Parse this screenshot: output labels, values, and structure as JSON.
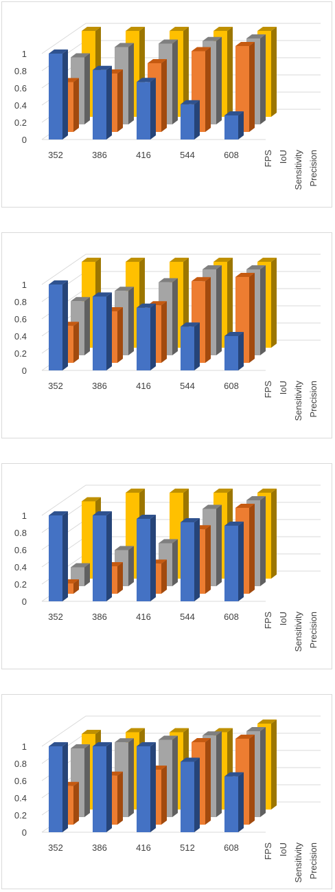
{
  "palette": {
    "FPS": [
      "#4472c4",
      "#2f528f",
      "#264478"
    ],
    "IoU": [
      "#ed7d31",
      "#c55a11",
      "#a24a0e"
    ],
    "Sensitivity": [
      "#a5a5a5",
      "#7f7f7f",
      "#606060"
    ],
    "Precision": [
      "#ffc000",
      "#bf9000",
      "#9c7600"
    ],
    "grid": "#d9d9d9",
    "text": "#404040"
  },
  "chart_data": [
    {
      "type": "bar",
      "projection": "3d-column",
      "categories": [
        "352",
        "386",
        "416",
        "544",
        "608"
      ],
      "y_ticks": [
        "0",
        "0.2",
        "0.4",
        "0.6",
        "0.8",
        "1"
      ],
      "ylim": [
        0,
        1
      ],
      "series": [
        {
          "name": "FPS",
          "values": [
            1.0,
            0.81,
            0.67,
            0.41,
            0.28
          ]
        },
        {
          "name": "IoU",
          "values": [
            0.58,
            0.68,
            0.8,
            0.94,
            1.0
          ]
        },
        {
          "name": "Sensitivity",
          "values": [
            0.78,
            0.9,
            0.94,
            0.97,
            1.0
          ]
        },
        {
          "name": "Precision",
          "values": [
            1.0,
            1.0,
            1.0,
            1.0,
            1.0
          ]
        }
      ]
    },
    {
      "type": "bar",
      "projection": "3d-column",
      "categories": [
        "352",
        "386",
        "416",
        "544",
        "608"
      ],
      "y_ticks": [
        "0",
        "0.2",
        "0.4",
        "0.6",
        "0.8",
        "1"
      ],
      "ylim": [
        0,
        1
      ],
      "series": [
        {
          "name": "FPS",
          "values": [
            1.0,
            0.86,
            0.73,
            0.51,
            0.4
          ]
        },
        {
          "name": "IoU",
          "values": [
            0.43,
            0.6,
            0.67,
            0.95,
            1.0
          ]
        },
        {
          "name": "Sensitivity",
          "values": [
            0.63,
            0.75,
            0.85,
            1.0,
            1.0
          ]
        },
        {
          "name": "Precision",
          "values": [
            1.0,
            1.0,
            1.0,
            1.0,
            1.0
          ]
        }
      ]
    },
    {
      "type": "bar",
      "projection": "3d-column",
      "categories": [
        "352",
        "386",
        "416",
        "544",
        "608"
      ],
      "y_ticks": [
        "0",
        "0.2",
        "0.4",
        "0.6",
        "0.8",
        "1"
      ],
      "ylim": [
        0,
        1
      ],
      "series": [
        {
          "name": "FPS",
          "values": [
            1.0,
            1.0,
            0.96,
            0.92,
            0.88
          ]
        },
        {
          "name": "IoU",
          "values": [
            0.12,
            0.32,
            0.35,
            0.75,
            1.0
          ]
        },
        {
          "name": "Sensitivity",
          "values": [
            0.22,
            0.42,
            0.5,
            0.9,
            1.0
          ]
        },
        {
          "name": "Precision",
          "values": [
            0.9,
            1.0,
            1.0,
            1.0,
            1.0
          ]
        }
      ]
    },
    {
      "type": "bar",
      "projection": "3d-column",
      "categories": [
        "352",
        "386",
        "416",
        "512",
        "608"
      ],
      "y_ticks": [
        "0",
        "0.2",
        "0.4",
        "0.6",
        "0.8",
        "1"
      ],
      "ylim": [
        0,
        1
      ],
      "series": [
        {
          "name": "FPS",
          "values": [
            1.0,
            1.0,
            1.0,
            0.82,
            0.65
          ]
        },
        {
          "name": "IoU",
          "values": [
            0.45,
            0.57,
            0.64,
            0.96,
            1.0
          ]
        },
        {
          "name": "Sensitivity",
          "values": [
            0.8,
            0.87,
            0.9,
            0.95,
            1.0
          ]
        },
        {
          "name": "Precision",
          "values": [
            0.88,
            0.9,
            0.9,
            0.9,
            1.0
          ]
        }
      ]
    }
  ]
}
